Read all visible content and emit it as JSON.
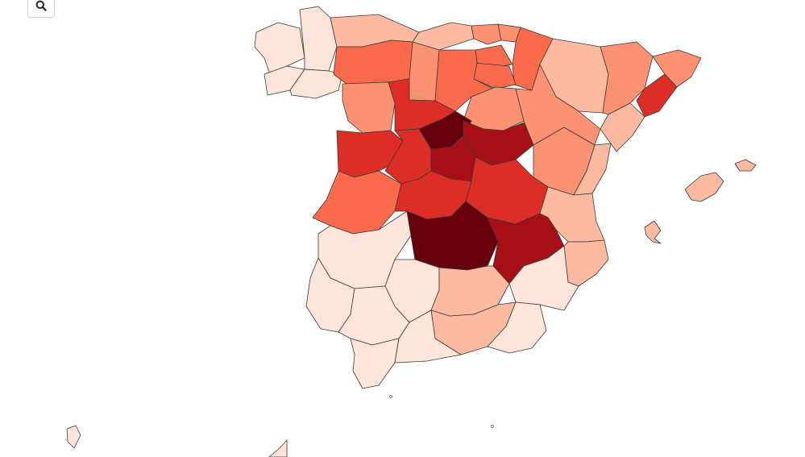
{
  "toolbar": {
    "zoom_icon": "magnifier-icon"
  },
  "map": {
    "projection": "conic",
    "scale_colors": [
      "#fee5d9",
      "#fcbba1",
      "#fc9272",
      "#fb6a4a",
      "#de2d26",
      "#a50f15",
      "#67000d"
    ],
    "regions": [
      {
        "name": "pontevedra",
        "level": 0
      },
      {
        "name": "a-coruna",
        "level": 0
      },
      {
        "name": "lugo",
        "level": 0
      },
      {
        "name": "ourense",
        "level": 0
      },
      {
        "name": "asturias",
        "level": 1
      },
      {
        "name": "cantabria",
        "level": 1
      },
      {
        "name": "bizkaia",
        "level": 2
      },
      {
        "name": "gipuzkoa",
        "level": 2
      },
      {
        "name": "araba",
        "level": 3
      },
      {
        "name": "navarra",
        "level": 3
      },
      {
        "name": "la-rioja",
        "level": 3
      },
      {
        "name": "leon",
        "level": 3
      },
      {
        "name": "palencia",
        "level": 2
      },
      {
        "name": "burgos",
        "level": 3
      },
      {
        "name": "zamora",
        "level": 2
      },
      {
        "name": "valladolid",
        "level": 4
      },
      {
        "name": "soria",
        "level": 2
      },
      {
        "name": "salamanca",
        "level": 4
      },
      {
        "name": "avila",
        "level": 4
      },
      {
        "name": "segovia",
        "level": 6
      },
      {
        "name": "madrid",
        "level": 5
      },
      {
        "name": "guadalajara",
        "level": 5
      },
      {
        "name": "huesca",
        "level": 1
      },
      {
        "name": "zaragoza",
        "level": 2
      },
      {
        "name": "teruel",
        "level": 2
      },
      {
        "name": "lleida",
        "level": 2
      },
      {
        "name": "girona",
        "level": 2
      },
      {
        "name": "barcelona",
        "level": 4
      },
      {
        "name": "tarragona",
        "level": 1
      },
      {
        "name": "caceres",
        "level": 3
      },
      {
        "name": "toledo",
        "level": 4
      },
      {
        "name": "cuenca",
        "level": 4
      },
      {
        "name": "castellon",
        "level": 1
      },
      {
        "name": "valencia",
        "level": 1
      },
      {
        "name": "badajoz",
        "level": 0
      },
      {
        "name": "ciudad-real",
        "level": 6
      },
      {
        "name": "albacete",
        "level": 5
      },
      {
        "name": "alicante",
        "level": 1
      },
      {
        "name": "murcia",
        "level": 0
      },
      {
        "name": "huelva",
        "level": 0
      },
      {
        "name": "sevilla",
        "level": 0
      },
      {
        "name": "cordoba",
        "level": 0
      },
      {
        "name": "jaen",
        "level": 1
      },
      {
        "name": "granada",
        "level": 1
      },
      {
        "name": "almeria",
        "level": 0
      },
      {
        "name": "cadiz",
        "level": 0
      },
      {
        "name": "malaga",
        "level": 0
      },
      {
        "name": "mallorca",
        "level": 1
      },
      {
        "name": "menorca",
        "level": 1
      },
      {
        "name": "ibiza",
        "level": 1
      },
      {
        "name": "canarias-west",
        "level": 0
      },
      {
        "name": "canarias-east",
        "level": 0
      }
    ]
  }
}
